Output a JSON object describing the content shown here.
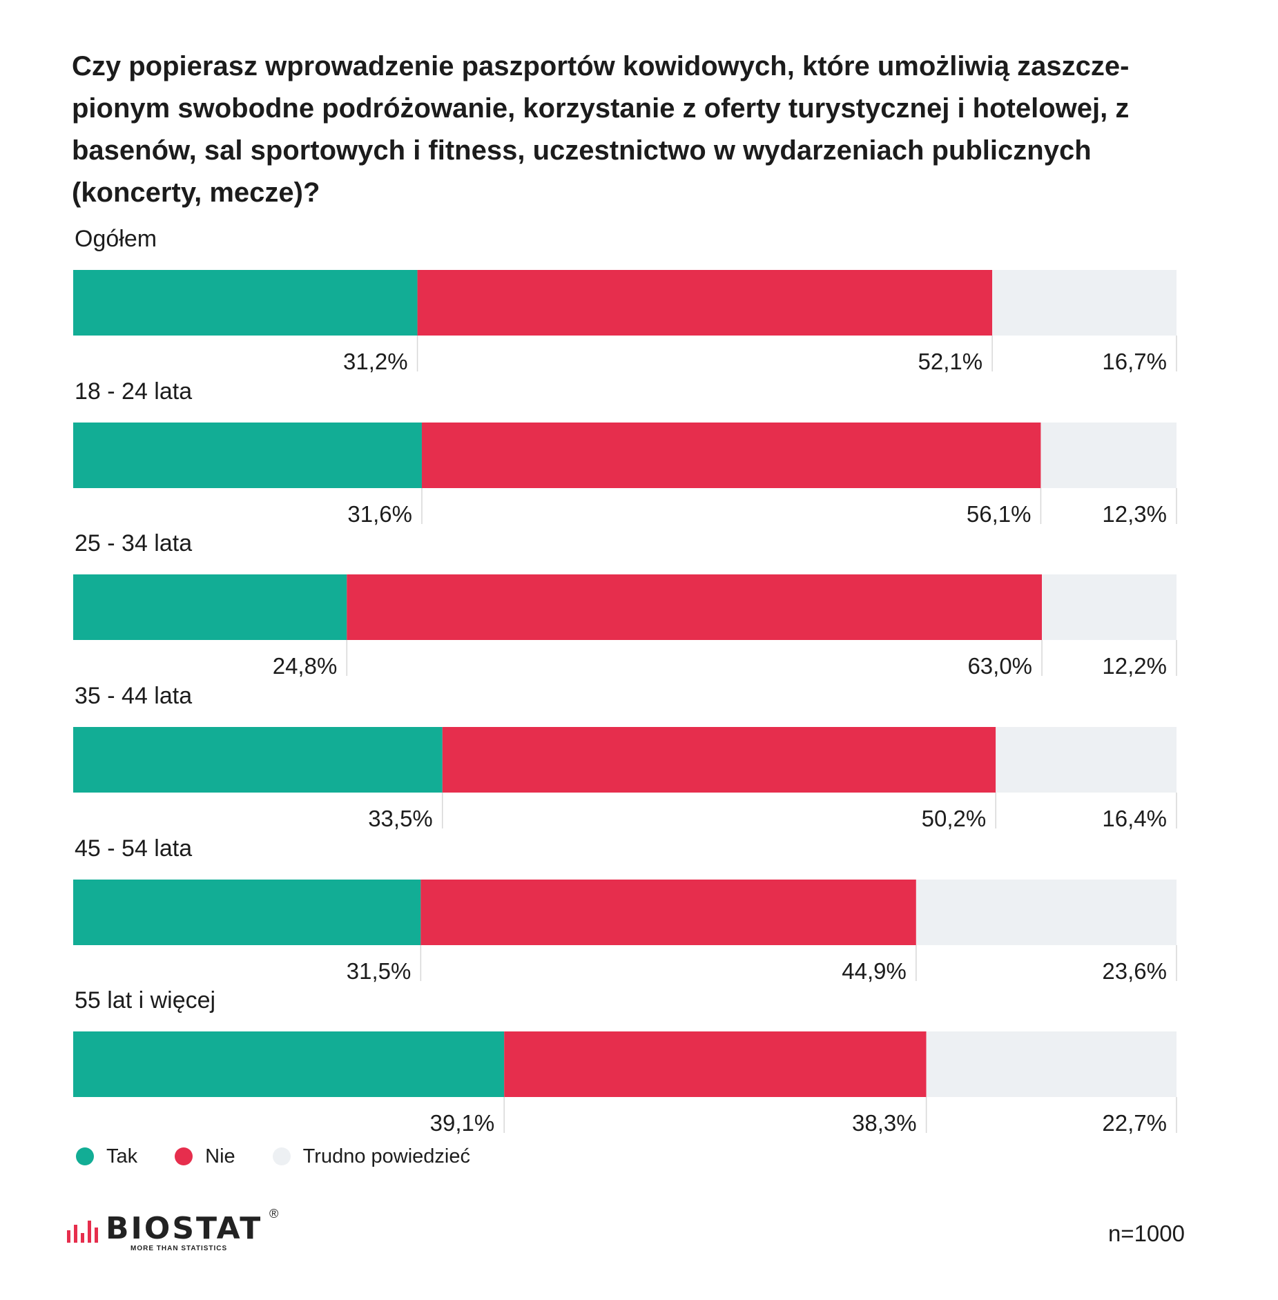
{
  "title": "Czy popierasz wprowadzenie paszportów kowidowych, które umożliwią zaszcze-pionym swobodne podróżowanie, korzystanie z oferty turystycznej i hotelowej, z basenów, sal sportowych i fitness, uczestnictwo w wydarzeniach publicznych (koncerty, mecze)?",
  "colors": {
    "tak": "#12ad95",
    "nie": "#e62e4d",
    "trudno": "#edf0f3"
  },
  "chart_data": {
    "type": "bar",
    "orientation": "horizontal",
    "stacked": true,
    "unit": "%",
    "categories": [
      "Ogółem",
      "18 - 24 lata",
      "25 - 34 lata",
      "35 - 44 lata",
      "45 - 54 lata",
      "55 lat i więcej"
    ],
    "series": [
      {
        "name": "Tak",
        "values": [
          31.2,
          31.6,
          24.8,
          33.5,
          31.5,
          39.1
        ],
        "labels": [
          "31,2%",
          "31,6%",
          "24,8%",
          "33,5%",
          "31,5%",
          "39,1%"
        ]
      },
      {
        "name": "Nie",
        "values": [
          52.1,
          56.1,
          63.0,
          50.2,
          44.9,
          38.3
        ],
        "labels": [
          "52,1%",
          "56,1%",
          "63,0%",
          "50,2%",
          "44,9%",
          "38,3%"
        ]
      },
      {
        "name": "Trudno powiedzieć",
        "values": [
          16.7,
          12.3,
          12.2,
          16.4,
          23.6,
          22.7
        ],
        "labels": [
          "16,7%",
          "12,3%",
          "12,2%",
          "16,4%",
          "23,6%",
          "22,7%"
        ]
      }
    ],
    "legend": "bottom-left"
  },
  "legend": [
    {
      "label": "Tak",
      "color_key": "tak"
    },
    {
      "label": "Nie",
      "color_key": "nie"
    },
    {
      "label": "Trudno powiedzieć",
      "color_key": "trudno"
    }
  ],
  "logo": {
    "name": "BIOSTAT",
    "tagline": "MORE THAN STATISTICS",
    "reg": "®"
  },
  "sample": "n=1000"
}
